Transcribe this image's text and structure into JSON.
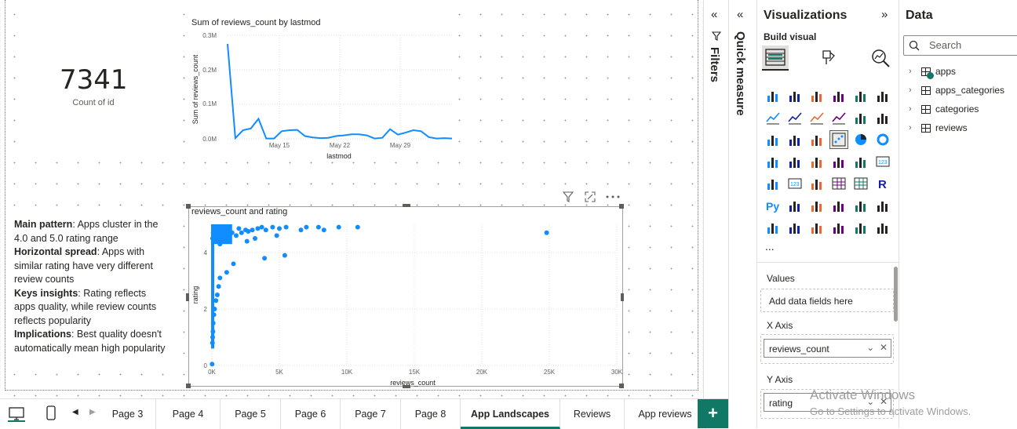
{
  "kpi": {
    "value": "7341",
    "label": "Count of id"
  },
  "line_chart": {
    "title": "Sum of reviews_count by lastmod",
    "xlabel": "lastmod",
    "ylabel": "Sum of reviews_count",
    "y_ticks": [
      "0.0M",
      "0.1M",
      "0.2M",
      "0.3M"
    ],
    "x_ticks": [
      "May 15",
      "May 22",
      "May 29"
    ]
  },
  "scatter_chart": {
    "title": "reviews_count and rating",
    "xlabel": "reviews_count",
    "ylabel": "rating",
    "x_ticks": [
      "0K",
      "5K",
      "10K",
      "15K",
      "20K",
      "25K",
      "30K"
    ],
    "y_ticks": [
      "0",
      "2",
      "4"
    ]
  },
  "chart_data": [
    {
      "type": "line",
      "title": "Sum of reviews_count by lastmod",
      "xlabel": "lastmod",
      "ylabel": "Sum of reviews_count",
      "x": [
        1,
        2,
        3,
        4,
        5,
        6,
        7,
        8,
        9,
        10,
        11,
        12,
        13,
        14,
        15,
        16,
        17,
        18,
        19,
        20,
        21,
        22,
        23,
        24,
        25,
        26,
        27,
        28,
        29,
        30
      ],
      "series": [
        {
          "values": [
            275000,
            2000,
            25000,
            30000,
            58000,
            1000,
            1000,
            22000,
            25000,
            26000,
            8000,
            4000,
            2000,
            3000,
            8000,
            10000,
            13000,
            13000,
            10000,
            1000,
            3000,
            28000,
            12000,
            18000,
            25000,
            22000,
            5000,
            1000,
            2000,
            1000
          ]
        }
      ],
      "x_tick_labels": [
        "May 15",
        "May 22",
        "May 29"
      ],
      "ylim": [
        0,
        300000
      ],
      "grid": true
    },
    {
      "type": "scatter",
      "title": "reviews_count and rating",
      "xlabel": "reviews_count",
      "ylabel": "rating",
      "xlim": [
        0,
        30000
      ],
      "ylim": [
        0,
        5
      ],
      "points": [
        [
          24800,
          4.7
        ],
        [
          10800,
          4.9
        ],
        [
          9400,
          4.9
        ],
        [
          8300,
          4.8
        ],
        [
          7900,
          4.9
        ],
        [
          7000,
          4.9
        ],
        [
          6600,
          4.8
        ],
        [
          5500,
          4.9
        ],
        [
          5000,
          4.85
        ],
        [
          4500,
          4.9
        ],
        [
          4000,
          4.8
        ],
        [
          3700,
          4.9
        ],
        [
          3400,
          4.85
        ],
        [
          3000,
          4.8
        ],
        [
          2700,
          4.75
        ],
        [
          2500,
          4.8
        ],
        [
          2200,
          4.7
        ],
        [
          2000,
          4.85
        ],
        [
          1800,
          4.6
        ],
        [
          1500,
          4.7
        ],
        [
          1200,
          4.5
        ],
        [
          1000,
          4.6
        ],
        [
          800,
          4.4
        ],
        [
          600,
          4.3
        ],
        [
          400,
          4.6
        ],
        [
          300,
          4.9
        ],
        [
          200,
          4.8
        ],
        [
          100,
          4.7
        ],
        [
          50,
          4.5
        ],
        [
          5400,
          3.9
        ],
        [
          3900,
          3.8
        ],
        [
          1600,
          3.6
        ],
        [
          1100,
          3.3
        ],
        [
          600,
          3.1
        ],
        [
          500,
          2.8
        ],
        [
          400,
          2.5
        ],
        [
          300,
          2.3
        ],
        [
          200,
          2.0
        ],
        [
          150,
          1.8
        ],
        [
          100,
          1.5
        ],
        [
          80,
          1.2
        ],
        [
          60,
          1.0
        ],
        [
          40,
          0.8
        ],
        [
          20,
          0.05
        ],
        [
          4800,
          4.6
        ],
        [
          3200,
          4.5
        ],
        [
          2600,
          4.4
        ]
      ]
    }
  ],
  "narrative": [
    {
      "label": "Main pattern",
      "text": ": Apps cluster in the 4.0 and 5.0  rating range"
    },
    {
      "label": "Horizontal spread",
      "text": ": Apps with similar rating have very different review counts"
    },
    {
      "label": "Keys insights",
      "text": ": Rating reflects apps quality, while review counts reflects popularity"
    },
    {
      "label": "Implications",
      "text": ": Best quality doesn't automatically mean high popularity"
    }
  ],
  "tabs": [
    "Page 3",
    "Page 4",
    "Page 5",
    "Page 6",
    "Page 7",
    "Page 8",
    "App Landscapes",
    "Reviews",
    "App reviews"
  ],
  "active_tab": "App Landscapes",
  "add_page_label": "+",
  "filters_label": "Filters",
  "quick_measure_label": "Quick measure",
  "visualizations": {
    "title": "Visualizations",
    "build_visual": "Build visual",
    "more": "...",
    "values_label": "Values",
    "values_placeholder": "Add data fields here",
    "x_axis_label": "X Axis",
    "x_axis_field": "reviews_count",
    "y_axis_label": "Y Axis",
    "y_axis_field": "rating"
  },
  "data_pane": {
    "title": "Data",
    "search_placeholder": "Search",
    "tables": [
      "apps",
      "apps_categories",
      "categories",
      "reviews"
    ]
  },
  "watermark": {
    "line1": "Activate Windows",
    "line2": "Go to Settings to activate Windows."
  },
  "colors": {
    "accent": "#117865",
    "series": "#118dff"
  },
  "icons": {
    "collapse_filters": "double-chevron-left-icon",
    "filter": "filter-icon",
    "focus_mode": "focus-mode-icon",
    "more_options": "more-options-icon"
  }
}
